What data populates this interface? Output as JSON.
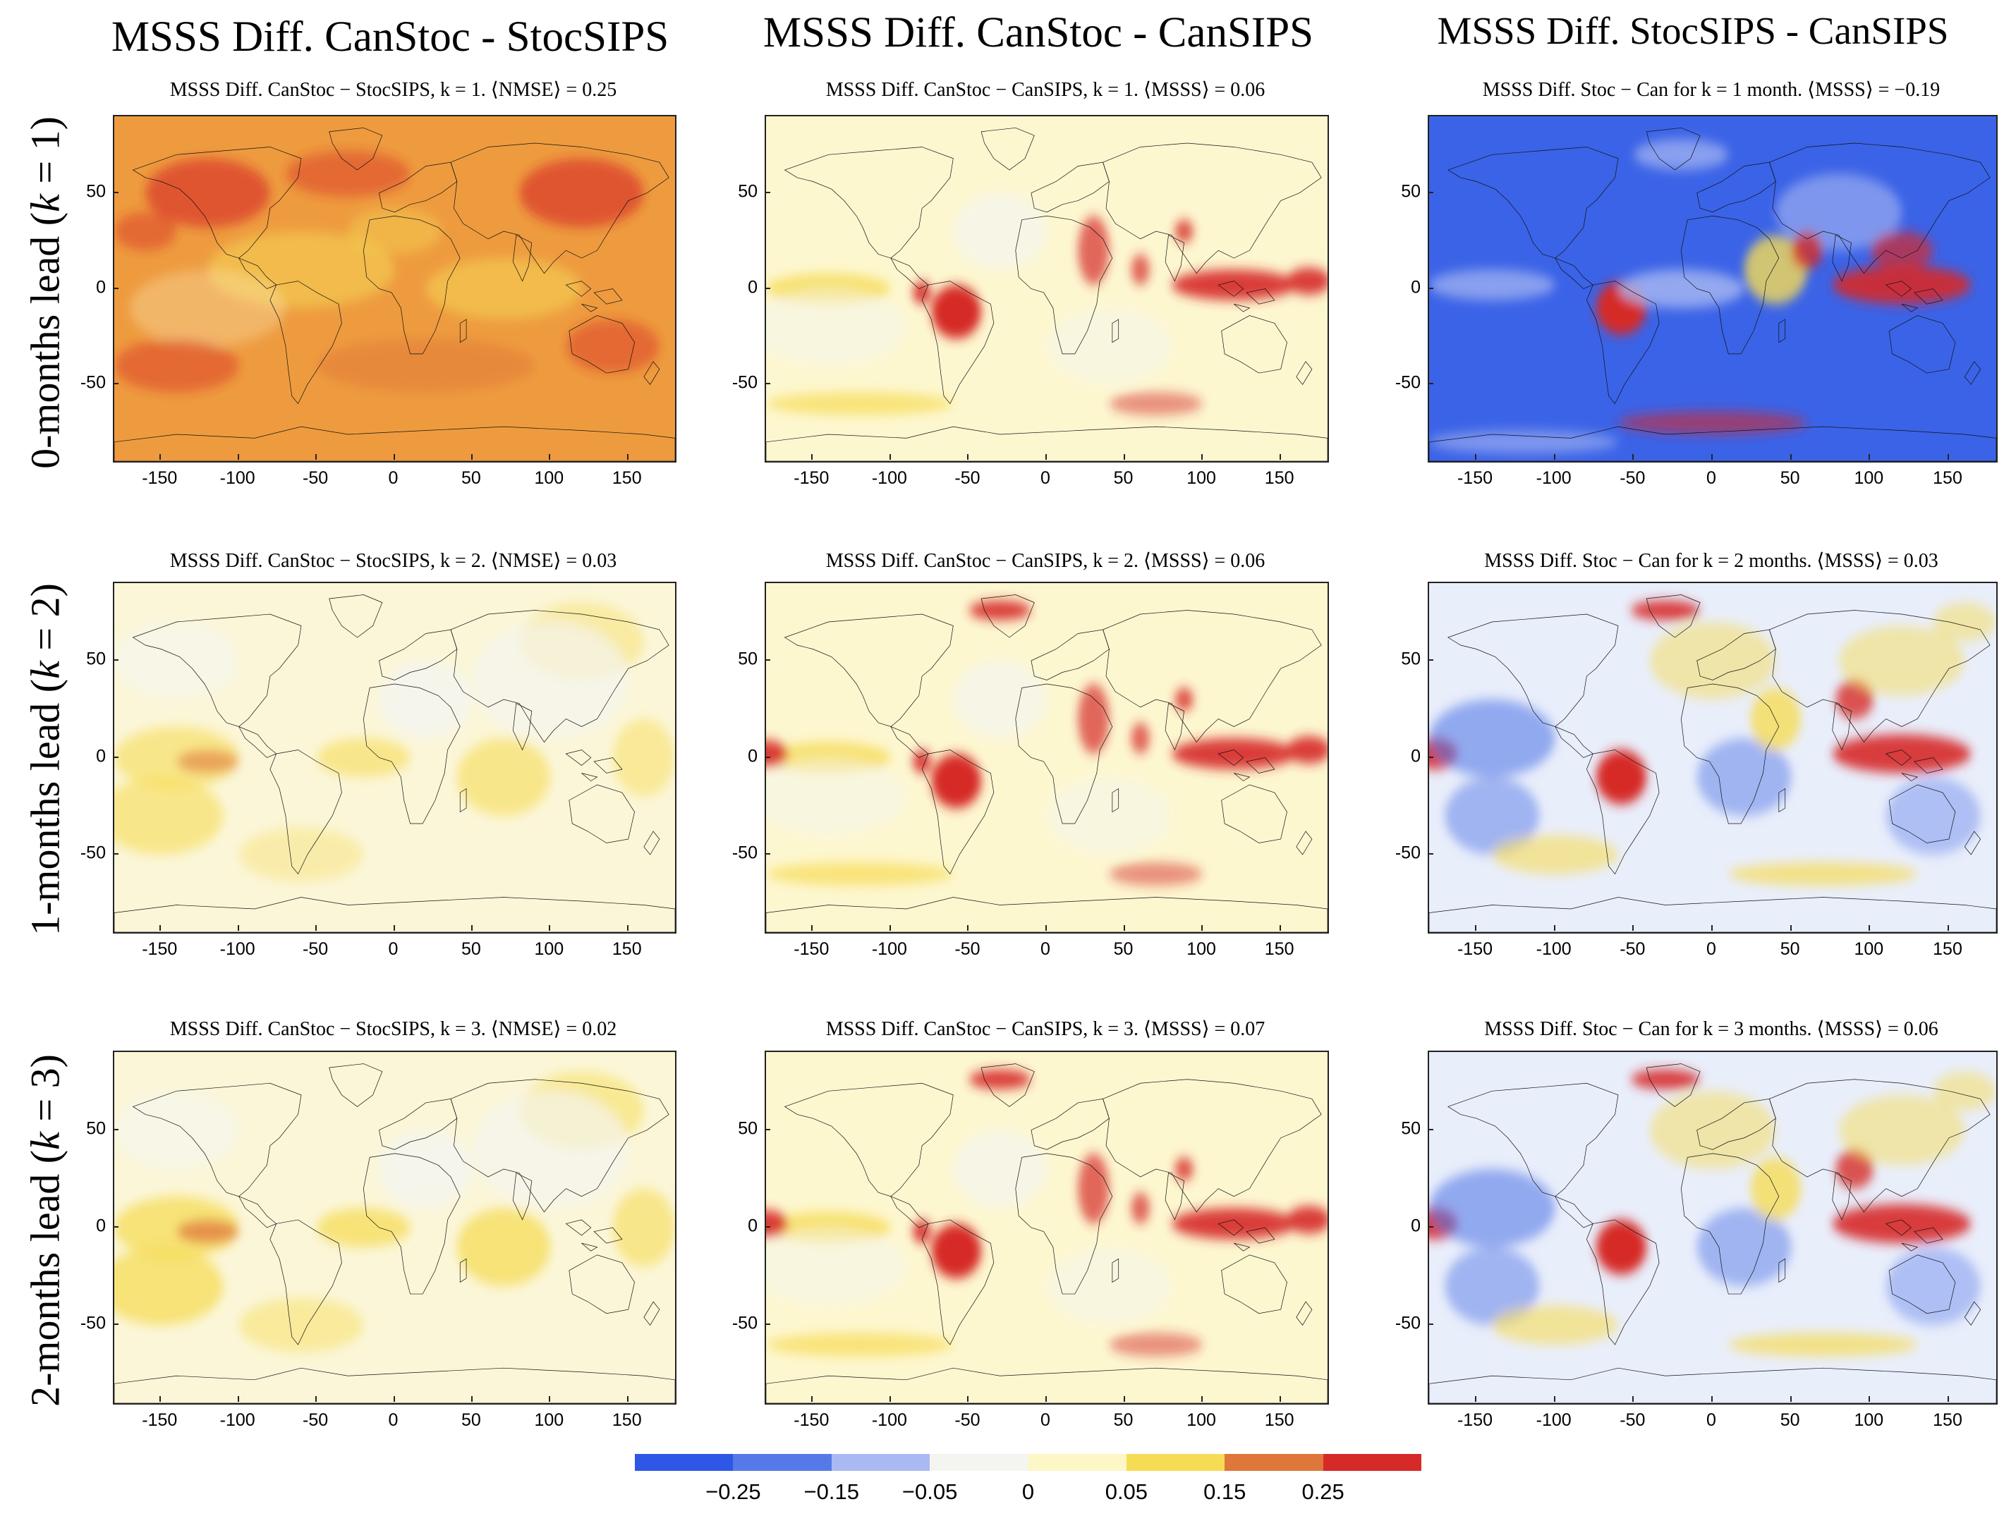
{
  "columns": [
    {
      "title": "MSSS Diff. CanStoc - StocSIPS"
    },
    {
      "title": "MSSS Diff. CanStoc - CanSIPS"
    },
    {
      "title": "MSSS Diff. StocSIPS - CanSIPS"
    }
  ],
  "rows": [
    {
      "label_pre": "0-months lead (",
      "label_k": "k",
      "label_post": " = 1)"
    },
    {
      "label_pre": "1-months lead (",
      "label_k": "k",
      "label_post": " = 2)"
    },
    {
      "label_pre": "2-months lead (",
      "label_k": "k",
      "label_post": " = 3)"
    }
  ],
  "panel_titles": [
    [
      "MSSS Diff. CanStoc − StocSIPS, k = 1. ⟨NMSE⟩ = 0.25",
      "MSSS Diff. CanStoc − CanSIPS, k = 1. ⟨MSSS⟩ = 0.06",
      "MSSS Diff. Stoc − Can for k = 1 month. ⟨MSSS⟩ = −0.19"
    ],
    [
      "MSSS Diff. CanStoc − StocSIPS, k = 2. ⟨NMSE⟩ = 0.03",
      "MSSS Diff. CanStoc − CanSIPS, k = 2. ⟨MSSS⟩ = 0.06",
      "MSSS Diff. Stoc − Can for k = 2 months. ⟨MSSS⟩ = 0.03"
    ],
    [
      "MSSS Diff. CanStoc − StocSIPS, k = 3. ⟨NMSE⟩ = 0.02",
      "MSSS Diff. CanStoc − CanSIPS, k = 3. ⟨MSSS⟩ = 0.07",
      "MSSS Diff. Stoc − Can for k = 3 months. ⟨MSSS⟩ = 0.06"
    ]
  ],
  "chart_data": {
    "type": "heatmap",
    "layout": "3x3 grid of global maps",
    "x_ticks": [
      "-150",
      "-100",
      "-50",
      "0",
      "50",
      "100",
      "150"
    ],
    "x_tick_values": [
      -150,
      -100,
      -50,
      0,
      50,
      100,
      150
    ],
    "y_ticks": [
      "50",
      "0",
      "-50"
    ],
    "y_tick_values": [
      50,
      0,
      -50
    ],
    "xlim": [
      -180,
      180
    ],
    "ylim": [
      -90,
      90
    ],
    "colorbar": {
      "bins": [
        -0.35,
        -0.25,
        -0.15,
        -0.05,
        0,
        0.05,
        0.15,
        0.25,
        0.35
      ],
      "colors": [
        "#2f57e6",
        "#5679e8",
        "#aab9f2",
        "#f5f5f0",
        "#fdf6c6",
        "#f6dc55",
        "#e0773a",
        "#d62a28"
      ],
      "tick_labels": [
        "−0.25",
        "−0.15",
        "−0.05",
        "0",
        "0.05",
        "0.15",
        "0.25"
      ],
      "tick_values": [
        -0.25,
        -0.15,
        -0.05,
        0,
        0.05,
        0.15,
        0.25
      ]
    },
    "panel_means": [
      [
        0.25,
        0.06,
        -0.19
      ],
      [
        0.03,
        0.06,
        0.03
      ],
      [
        0.02,
        0.07,
        0.06
      ]
    ],
    "panel_mean_labels": [
      [
        "NMSE",
        "MSSS",
        "MSSS"
      ],
      [
        "NMSE",
        "MSSS",
        "MSSS"
      ],
      [
        "NMSE",
        "MSSS",
        "MSSS"
      ]
    ]
  }
}
